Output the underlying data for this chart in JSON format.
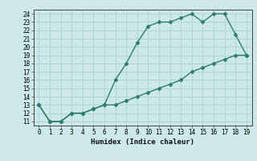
{
  "xlabel": "Humidex (Indice chaleur)",
  "xlim": [
    -0.5,
    19.5
  ],
  "ylim": [
    10.5,
    24.5
  ],
  "xticks": [
    0,
    1,
    2,
    3,
    4,
    5,
    6,
    7,
    8,
    9,
    10,
    11,
    12,
    13,
    14,
    15,
    16,
    17,
    18,
    19
  ],
  "yticks": [
    11,
    12,
    13,
    14,
    15,
    16,
    17,
    18,
    19,
    20,
    21,
    22,
    23,
    24
  ],
  "bg_color": "#cce8e8",
  "line_color": "#2e7d6e",
  "grid_color": "#aed4d0",
  "upper_x": [
    0,
    1,
    2,
    3,
    4,
    5,
    6,
    7,
    8,
    9,
    10,
    11,
    12,
    13,
    14,
    15,
    16,
    17,
    18,
    19
  ],
  "upper_y": [
    13,
    11,
    11,
    12,
    12,
    12.5,
    13,
    16,
    18,
    20.5,
    22.5,
    23,
    23,
    23.5,
    24,
    23,
    24,
    24,
    21.5,
    19
  ],
  "lower_x": [
    0,
    1,
    2,
    3,
    4,
    5,
    6,
    7,
    8,
    9,
    10,
    11,
    12,
    13,
    14,
    15,
    16,
    17,
    18,
    19
  ],
  "lower_y": [
    13,
    11,
    11,
    12,
    12,
    12.5,
    13,
    13,
    13.5,
    14,
    14.5,
    15,
    15.5,
    16,
    17,
    17.5,
    18,
    18.5,
    19,
    19
  ]
}
